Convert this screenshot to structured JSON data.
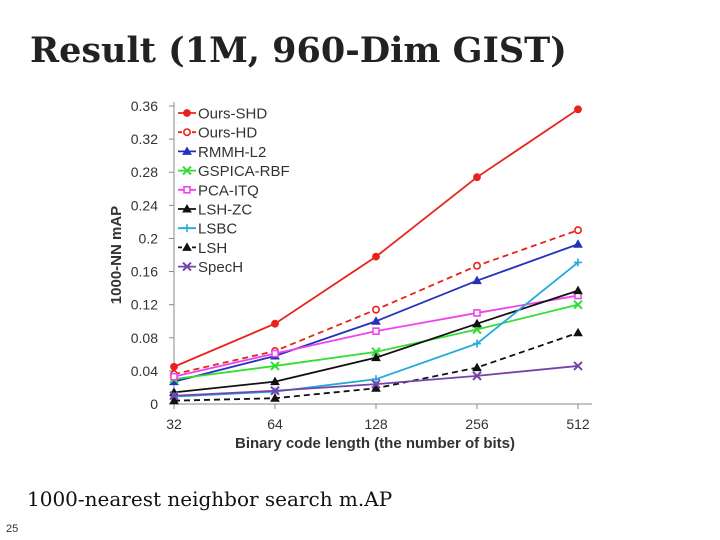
{
  "slide": {
    "title": "Result (1M, 960-Dim GIST)",
    "caption": "1000-nearest neighbor search m.AP",
    "page_number": "25"
  },
  "chart_data": {
    "type": "line",
    "title": "",
    "xlabel": "Binary code length (the number of bits)",
    "ylabel": "1000-NN mAP",
    "categories": [
      "32",
      "64",
      "128",
      "256",
      "512"
    ],
    "ylim": [
      0,
      0.36
    ],
    "yticks": [
      "0",
      "0.04",
      "0.08",
      "0.12",
      "0.16",
      "0.2",
      "0.24",
      "0.28",
      "0.32",
      "0.36"
    ],
    "grid": false,
    "legend_position": "top-left",
    "series": [
      {
        "name": "Ours-SHD",
        "color": "#e8231b",
        "dash": false,
        "marker": "circle-filled",
        "values": [
          0.045,
          0.097,
          0.178,
          0.274,
          0.356
        ]
      },
      {
        "name": "Ours-HD",
        "color": "#e8231b",
        "dash": true,
        "marker": "circle-open",
        "values": [
          0.036,
          0.064,
          0.114,
          0.167,
          0.21
        ]
      },
      {
        "name": "RMMH-L2",
        "color": "#2233bb",
        "dash": false,
        "marker": "triangle",
        "values": [
          0.027,
          0.058,
          0.1,
          0.149,
          0.193
        ]
      },
      {
        "name": "GSPICA-RBF",
        "color": "#33dd33",
        "dash": false,
        "marker": "x",
        "values": [
          0.03,
          0.046,
          0.063,
          0.09,
          0.12
        ]
      },
      {
        "name": "PCA-ITQ",
        "color": "#ee44ee",
        "dash": false,
        "marker": "square-open",
        "values": [
          0.033,
          0.061,
          0.088,
          0.11,
          0.131
        ]
      },
      {
        "name": "LSH-ZC",
        "color": "#111111",
        "dash": false,
        "marker": "triangle",
        "values": [
          0.014,
          0.027,
          0.056,
          0.097,
          0.137
        ]
      },
      {
        "name": "LSBC",
        "color": "#22aadd",
        "dash": false,
        "marker": "plus",
        "values": [
          0.009,
          0.015,
          0.03,
          0.073,
          0.171
        ]
      },
      {
        "name": "LSH",
        "color": "#111111",
        "dash": true,
        "marker": "triangle",
        "values": [
          0.004,
          0.007,
          0.019,
          0.044,
          0.086
        ]
      },
      {
        "name": "SpecH",
        "color": "#7744aa",
        "dash": false,
        "marker": "x",
        "values": [
          0.01,
          0.016,
          0.024,
          0.034,
          0.046
        ]
      }
    ]
  }
}
